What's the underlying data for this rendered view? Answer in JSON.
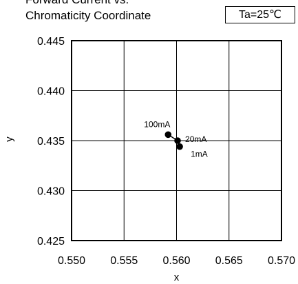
{
  "chart_data": {
    "type": "scatter",
    "title": [
      "Forward Current vs.",
      "Chromaticity Coordinate"
    ],
    "condition": "Ta=25℃",
    "xlabel": "x",
    "ylabel": "y",
    "xlim": [
      0.55,
      0.57
    ],
    "ylim": [
      0.425,
      0.445
    ],
    "xticks": [
      "0.550",
      "0.555",
      "0.560",
      "0.565",
      "0.570"
    ],
    "yticks": [
      "0.425",
      "0.430",
      "0.435",
      "0.440",
      "0.445"
    ],
    "grid": true,
    "points": [
      {
        "label": "100mA",
        "x": 0.5592,
        "y": 0.4356
      },
      {
        "label": "20mA",
        "x": 0.5601,
        "y": 0.435
      },
      {
        "label": "1mA",
        "x": 0.5603,
        "y": 0.4344
      }
    ]
  }
}
